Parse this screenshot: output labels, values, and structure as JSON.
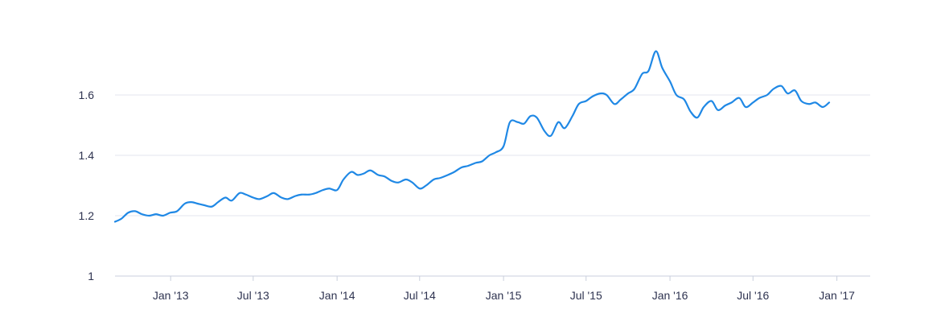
{
  "chart_data": {
    "type": "line",
    "title": "",
    "xlabel": "",
    "ylabel": "",
    "x_range": [
      "2012-09-01",
      "2017-03-15"
    ],
    "ylim": [
      1.0,
      1.65
    ],
    "grid": "horizontal",
    "colors": {
      "line": "#1f88e5",
      "grid": "#e3e6ef",
      "text": "#2e3350"
    },
    "y_ticks": [
      {
        "value": 1.0,
        "label": "1"
      },
      {
        "value": 1.2,
        "label": "1.2"
      },
      {
        "value": 1.4,
        "label": "1.4"
      },
      {
        "value": 1.6,
        "label": "1.6"
      }
    ],
    "x_ticks": [
      {
        "date": "2013-01-01",
        "label": "Jan '13"
      },
      {
        "date": "2013-07-01",
        "label": "Jul '13"
      },
      {
        "date": "2014-01-01",
        "label": "Jan '14"
      },
      {
        "date": "2014-07-01",
        "label": "Jul '14"
      },
      {
        "date": "2015-01-01",
        "label": "Jan '15"
      },
      {
        "date": "2015-07-01",
        "label": "Jul '15"
      },
      {
        "date": "2016-01-01",
        "label": "Jan '16"
      },
      {
        "date": "2016-07-01",
        "label": "Jul '16"
      },
      {
        "date": "2017-01-01",
        "label": "Jan '17"
      }
    ],
    "series": [
      {
        "name": "",
        "points": [
          [
            "2012-09-01",
            1.18
          ],
          [
            "2012-09-15",
            1.19
          ],
          [
            "2012-09-30",
            1.21
          ],
          [
            "2012-10-15",
            1.215
          ],
          [
            "2012-10-30",
            1.205
          ],
          [
            "2012-11-15",
            1.2
          ],
          [
            "2012-11-30",
            1.205
          ],
          [
            "2012-12-15",
            1.2
          ],
          [
            "2012-12-31",
            1.21
          ],
          [
            "2013-01-15",
            1.215
          ],
          [
            "2013-02-01",
            1.24
          ],
          [
            "2013-02-15",
            1.245
          ],
          [
            "2013-03-01",
            1.24
          ],
          [
            "2013-03-15",
            1.235
          ],
          [
            "2013-04-01",
            1.23
          ],
          [
            "2013-04-15",
            1.245
          ],
          [
            "2013-05-01",
            1.26
          ],
          [
            "2013-05-15",
            1.25
          ],
          [
            "2013-06-01",
            1.275
          ],
          [
            "2013-06-15",
            1.27
          ],
          [
            "2013-07-01",
            1.26
          ],
          [
            "2013-07-15",
            1.255
          ],
          [
            "2013-08-01",
            1.265
          ],
          [
            "2013-08-15",
            1.275
          ],
          [
            "2013-09-01",
            1.26
          ],
          [
            "2013-09-15",
            1.255
          ],
          [
            "2013-10-01",
            1.265
          ],
          [
            "2013-10-15",
            1.27
          ],
          [
            "2013-11-01",
            1.27
          ],
          [
            "2013-11-15",
            1.275
          ],
          [
            "2013-12-01",
            1.285
          ],
          [
            "2013-12-15",
            1.29
          ],
          [
            "2014-01-01",
            1.285
          ],
          [
            "2014-01-15",
            1.32
          ],
          [
            "2014-02-01",
            1.345
          ],
          [
            "2014-02-15",
            1.335
          ],
          [
            "2014-03-01",
            1.34
          ],
          [
            "2014-03-15",
            1.35
          ],
          [
            "2014-04-01",
            1.335
          ],
          [
            "2014-04-15",
            1.33
          ],
          [
            "2014-05-01",
            1.315
          ],
          [
            "2014-05-15",
            1.31
          ],
          [
            "2014-06-01",
            1.32
          ],
          [
            "2014-06-15",
            1.31
          ],
          [
            "2014-07-01",
            1.29
          ],
          [
            "2014-07-15",
            1.3
          ],
          [
            "2014-08-01",
            1.32
          ],
          [
            "2014-08-15",
            1.325
          ],
          [
            "2014-09-01",
            1.335
          ],
          [
            "2014-09-15",
            1.345
          ],
          [
            "2014-10-01",
            1.36
          ],
          [
            "2014-10-15",
            1.365
          ],
          [
            "2014-11-01",
            1.375
          ],
          [
            "2014-11-15",
            1.38
          ],
          [
            "2014-12-01",
            1.4
          ],
          [
            "2014-12-15",
            1.41
          ],
          [
            "2015-01-01",
            1.43
          ],
          [
            "2015-01-15",
            1.51
          ],
          [
            "2015-02-01",
            1.51
          ],
          [
            "2015-02-15",
            1.505
          ],
          [
            "2015-03-01",
            1.53
          ],
          [
            "2015-03-15",
            1.525
          ],
          [
            "2015-04-01",
            1.48
          ],
          [
            "2015-04-15",
            1.465
          ],
          [
            "2015-05-01",
            1.51
          ],
          [
            "2015-05-15",
            1.49
          ],
          [
            "2015-06-01",
            1.53
          ],
          [
            "2015-06-15",
            1.57
          ],
          [
            "2015-07-01",
            1.58
          ],
          [
            "2015-07-15",
            1.595
          ],
          [
            "2015-08-01",
            1.605
          ],
          [
            "2015-08-15",
            1.6
          ],
          [
            "2015-09-01",
            1.57
          ],
          [
            "2015-09-15",
            1.585
          ],
          [
            "2015-10-01",
            1.605
          ],
          [
            "2015-10-15",
            1.62
          ],
          [
            "2015-11-01",
            1.67
          ],
          [
            "2015-11-15",
            1.68
          ],
          [
            "2015-12-01",
            1.745
          ],
          [
            "2015-12-15",
            1.69
          ],
          [
            "2016-01-01",
            1.645
          ],
          [
            "2016-01-15",
            1.6
          ],
          [
            "2016-02-01",
            1.585
          ],
          [
            "2016-02-15",
            1.545
          ],
          [
            "2016-03-01",
            1.525
          ],
          [
            "2016-03-15",
            1.56
          ],
          [
            "2016-04-01",
            1.58
          ],
          [
            "2016-04-15",
            1.55
          ],
          [
            "2016-05-01",
            1.565
          ],
          [
            "2016-05-15",
            1.575
          ],
          [
            "2016-06-01",
            1.59
          ],
          [
            "2016-06-15",
            1.56
          ],
          [
            "2016-07-01",
            1.575
          ],
          [
            "2016-07-15",
            1.59
          ],
          [
            "2016-08-01",
            1.6
          ],
          [
            "2016-08-15",
            1.62
          ],
          [
            "2016-09-01",
            1.63
          ],
          [
            "2016-09-15",
            1.605
          ],
          [
            "2016-10-01",
            1.615
          ],
          [
            "2016-10-15",
            1.58
          ],
          [
            "2016-11-01",
            1.57
          ],
          [
            "2016-11-15",
            1.575
          ],
          [
            "2016-12-01",
            1.56
          ],
          [
            "2016-12-15",
            1.575
          ]
        ]
      }
    ]
  }
}
